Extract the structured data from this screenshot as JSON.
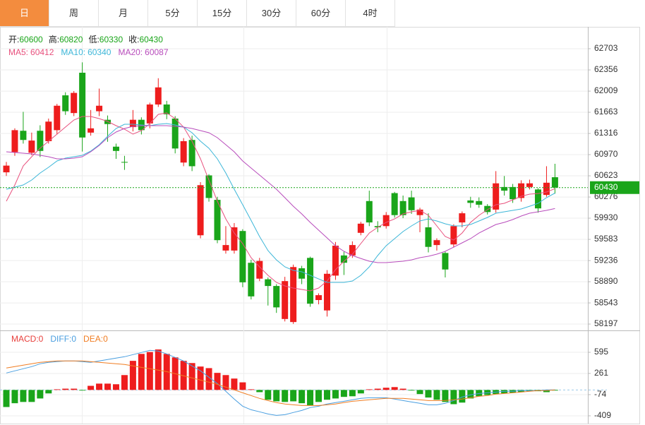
{
  "tabs": [
    "日",
    "周",
    "月",
    "5分",
    "15分",
    "30分",
    "60分",
    "4时"
  ],
  "active_tab": 0,
  "chart_data": [
    {
      "type": "candlestick",
      "up_color": "#ee1d1d",
      "down_color": "#1aa51a",
      "grid": true,
      "summary": [
        {
          "label": "开:",
          "value": 60600
        },
        {
          "label": "高:",
          "value": 60820
        },
        {
          "label": "低:",
          "value": 60330
        },
        {
          "label": "收:",
          "value": 60430
        }
      ],
      "current_price": 60430,
      "ylim": [
        58128,
        63038
      ],
      "yticks": [
        62703,
        62356,
        62009,
        61663,
        61316,
        60970,
        60623,
        60276,
        59930,
        59583,
        59236,
        58890,
        58543,
        58197
      ],
      "open": [
        60680,
        61010,
        61360,
        61000,
        61360,
        61190,
        61370,
        61940,
        61650,
        62310,
        61330,
        61680,
        61540,
        61100,
        60850,
        61420,
        61540,
        61480,
        61790,
        61790,
        61560,
        60840,
        61210,
        59650,
        60630,
        60230,
        59400,
        59400,
        59720,
        59200,
        58940,
        58930,
        58820,
        58280,
        58230,
        59110,
        59280,
        58590,
        58420,
        58990,
        59320,
        59320,
        59690,
        60210,
        59800,
        59800,
        60340,
        60210,
        60270,
        59980,
        59780,
        59490,
        59360,
        59500,
        59860,
        60220,
        60210,
        60130,
        60070,
        60440,
        60440,
        60260,
        60440,
        60400,
        60310,
        60600
      ],
      "high": [
        60850,
        61400,
        61670,
        61330,
        61450,
        61560,
        61800,
        61990,
        62010,
        62480,
        61700,
        62050,
        61610,
        61150,
        60950,
        61700,
        61580,
        61820,
        62220,
        61850,
        61600,
        61240,
        61280,
        60520,
        60650,
        60280,
        59800,
        59850,
        59750,
        59250,
        59280,
        58960,
        58850,
        58970,
        59170,
        59150,
        59300,
        58700,
        59080,
        59540,
        59380,
        59550,
        59870,
        60380,
        59880,
        60030,
        60360,
        60300,
        60380,
        60100,
        60010,
        59600,
        59380,
        59830,
        60040,
        60280,
        60270,
        60160,
        60700,
        60620,
        60490,
        60550,
        60560,
        60420,
        60780,
        60820
      ],
      "low": [
        60620,
        60950,
        61150,
        60960,
        60930,
        61150,
        61300,
        61620,
        61600,
        61020,
        61280,
        61600,
        61180,
        60900,
        60720,
        61350,
        61300,
        61400,
        61750,
        61550,
        60990,
        60780,
        60700,
        59600,
        60200,
        59520,
        59350,
        59350,
        58800,
        58600,
        58900,
        58500,
        58380,
        58240,
        58200,
        58850,
        58480,
        58520,
        58320,
        58920,
        59000,
        59280,
        59650,
        59800,
        59700,
        59760,
        59940,
        59930,
        60000,
        59700,
        59370,
        59400,
        58960,
        59450,
        59780,
        60100,
        60100,
        59990,
        60020,
        60300,
        60180,
        60200,
        60400,
        60020,
        60280,
        60330
      ],
      "close": [
        60790,
        61370,
        61210,
        61200,
        61030,
        61510,
        61770,
        61680,
        61980,
        61250,
        61400,
        61770,
        61470,
        61030,
        60840,
        61540,
        61370,
        61790,
        62070,
        61630,
        61070,
        61190,
        60780,
        60470,
        60260,
        59570,
        59490,
        59780,
        58880,
        58650,
        59230,
        58820,
        58470,
        58900,
        59130,
        58940,
        58530,
        58670,
        59020,
        59480,
        59200,
        59490,
        59840,
        59860,
        59780,
        59980,
        59980,
        59980,
        60060,
        60070,
        59460,
        59570,
        59090,
        59800,
        60010,
        60180,
        60150,
        60030,
        60500,
        60380,
        60240,
        60500,
        60500,
        60090,
        60510,
        60430
      ],
      "series": [
        {
          "name": "MA5:",
          "latest": 60412,
          "color": "#e8507d",
          "values": [
            60207,
            60473,
            60785,
            60935,
            61074,
            61189,
            61305,
            61421,
            61536,
            61594,
            61594,
            61559,
            61513,
            61444,
            61386,
            61305,
            61363,
            61478,
            61628,
            61652,
            61559,
            61421,
            61189,
            60901,
            60554,
            60207,
            59918,
            59687,
            59514,
            59283,
            59133,
            58994,
            58879,
            58821,
            58786,
            58763,
            58740,
            58786,
            58902,
            59087,
            59225,
            59341,
            59514,
            59687,
            59780,
            59861,
            59918,
            59999,
            60034,
            60057,
            59976,
            59803,
            59630,
            59572,
            59687,
            59861,
            59976,
            60069,
            60150,
            60173,
            60230,
            60288,
            60323,
            60334,
            60358,
            60412
          ]
        },
        {
          "name": "MA10:",
          "latest": 60340,
          "color": "#3cb6d8",
          "values": [
            60404,
            60438,
            60473,
            60554,
            60669,
            60762,
            60866,
            60912,
            60935,
            60958,
            61028,
            61132,
            61270,
            61397,
            61467,
            61467,
            61455,
            61444,
            61467,
            61478,
            61455,
            61421,
            61328,
            61189,
            61074,
            60901,
            60669,
            60404,
            60150,
            59895,
            59630,
            59399,
            59248,
            59133,
            59075,
            59052,
            58994,
            58936,
            58879,
            58879,
            58879,
            58902,
            58994,
            59133,
            59318,
            59479,
            59595,
            59711,
            59803,
            59884,
            59918,
            59884,
            59838,
            59803,
            59803,
            59826,
            59884,
            59942,
            60011,
            60034,
            60057,
            60080,
            60126,
            60173,
            60265,
            60340
          ]
        },
        {
          "name": "MA20:",
          "latest": 60087,
          "color": "#b84cbc",
          "values": [
            61016,
            61005,
            60993,
            60981,
            60958,
            60935,
            60901,
            60901,
            60912,
            60935,
            61016,
            61120,
            61247,
            61340,
            61397,
            61432,
            61444,
            61444,
            61444,
            61444,
            61432,
            61421,
            61397,
            61363,
            61328,
            61247,
            61132,
            61016,
            60866,
            60750,
            60635,
            60519,
            60404,
            60265,
            60126,
            59999,
            59861,
            59734,
            59607,
            59479,
            59387,
            59318,
            59271,
            59225,
            59202,
            59202,
            59214,
            59225,
            59248,
            59283,
            59306,
            59341,
            59387,
            59456,
            59526,
            59595,
            59687,
            59757,
            59826,
            59861,
            59907,
            59965,
            60011,
            60034,
            60057,
            60087
          ]
        }
      ]
    },
    {
      "type": "macd",
      "up_color": "#ee1d1d",
      "down_color": "#1aa51a",
      "grid": true,
      "ylim": [
        -532,
        919
      ],
      "yticks": [
        595,
        261,
        -74,
        -409
      ],
      "series": [
        {
          "name": "MACD:",
          "latest": 0,
          "color": "#e8403c",
          "values": [
            -270,
            -210,
            -190,
            -190,
            -135,
            -55,
            10,
            20,
            20,
            -10,
            65,
            100,
            100,
            90,
            235,
            460,
            570,
            600,
            640,
            570,
            515,
            460,
            425,
            370,
            345,
            270,
            235,
            180,
            120,
            10,
            -35,
            -155,
            -180,
            -190,
            -180,
            -210,
            -245,
            -190,
            -155,
            -135,
            -110,
            -100,
            -55,
            10,
            20,
            35,
            45,
            20,
            -10,
            -65,
            -120,
            -155,
            -190,
            -225,
            -200,
            -135,
            -100,
            -80,
            -65,
            -55,
            -45,
            -35,
            -20,
            -20,
            -35,
            -10
          ]
        },
        {
          "name": "DIFF:",
          "latest": 0,
          "color": "#4a9fe0",
          "values": [
            268,
            302,
            335,
            369,
            413,
            436,
            447,
            458,
            458,
            447,
            436,
            458,
            480,
            503,
            525,
            559,
            592,
            626,
            614,
            570,
            514,
            458,
            380,
            302,
            201,
            101,
            -22,
            -145,
            -257,
            -313,
            -346,
            -380,
            -402,
            -391,
            -357,
            -324,
            -279,
            -257,
            -223,
            -201,
            -179,
            -156,
            -134,
            -123,
            -123,
            -123,
            -145,
            -168,
            -190,
            -212,
            -235,
            -235,
            -212,
            -168,
            -112,
            -78,
            -56,
            -45,
            -34,
            -22,
            -22,
            -11,
            -11,
            -11,
            0,
            0
          ]
        },
        {
          "name": "DEA:",
          "latest": 0,
          "color": "#f07d22",
          "values": [
            346,
            369,
            391,
            413,
            436,
            447,
            458,
            458,
            458,
            458,
            447,
            436,
            424,
            413,
            402,
            380,
            357,
            335,
            313,
            290,
            257,
            223,
            190,
            156,
            123,
            89,
            45,
            0,
            -45,
            -89,
            -134,
            -168,
            -201,
            -223,
            -235,
            -246,
            -246,
            -246,
            -235,
            -223,
            -201,
            -179,
            -168,
            -156,
            -145,
            -134,
            -134,
            -134,
            -145,
            -156,
            -168,
            -168,
            -168,
            -156,
            -145,
            -123,
            -101,
            -89,
            -67,
            -56,
            -45,
            -34,
            -22,
            -11,
            -11,
            0
          ]
        }
      ]
    }
  ]
}
